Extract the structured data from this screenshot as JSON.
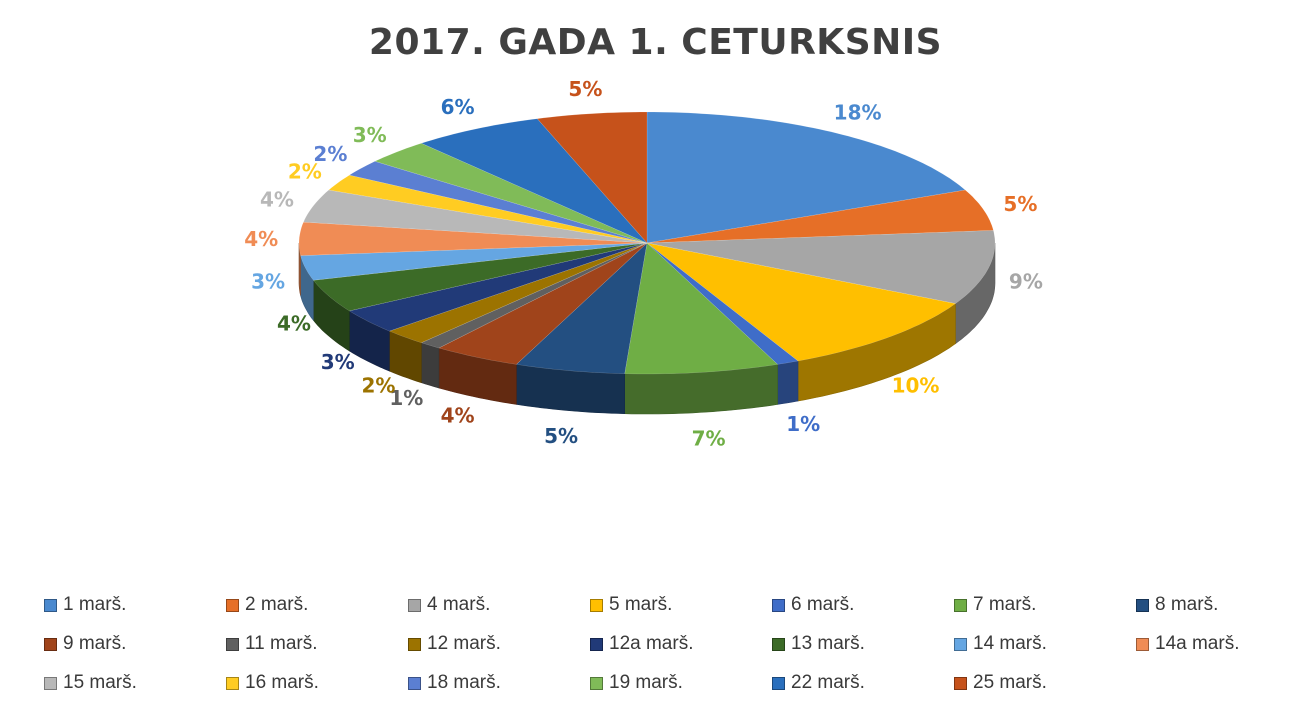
{
  "chart_data": {
    "type": "pie",
    "style": "3d",
    "title": "2017. GADA 1. CETURKSNIS",
    "legend_position": "bottom",
    "slices": [
      {
        "label": "1 marš.",
        "value": 18,
        "percent_label": "18%",
        "color": "#4a89cf"
      },
      {
        "label": "2 marš.",
        "value": 5,
        "percent_label": "5%",
        "color": "#e66f27"
      },
      {
        "label": "4 marš.",
        "value": 9,
        "percent_label": "9%",
        "color": "#a6a6a6"
      },
      {
        "label": "5 marš.",
        "value": 10,
        "percent_label": "10%",
        "color": "#ffbf00"
      },
      {
        "label": "6 marš.",
        "value": 1,
        "percent_label": "1%",
        "color": "#3f6dc8"
      },
      {
        "label": "7 marš.",
        "value": 7,
        "percent_label": "7%",
        "color": "#6fae45"
      },
      {
        "label": "8 marš.",
        "value": 5,
        "percent_label": "5%",
        "color": "#234f81"
      },
      {
        "label": "9 marš.",
        "value": 4,
        "percent_label": "4%",
        "color": "#a0441b"
      },
      {
        "label": "11 marš.",
        "value": 1,
        "percent_label": "1%",
        "color": "#606060"
      },
      {
        "label": "12 marš.",
        "value": 2,
        "percent_label": "2%",
        "color": "#9c7300"
      },
      {
        "label": "12a marš.",
        "value": 3,
        "percent_label": "3%",
        "color": "#213a78"
      },
      {
        "label": "13 marš.",
        "value": 4,
        "percent_label": "4%",
        "color": "#3c6b27"
      },
      {
        "label": "14 marš.",
        "value": 3,
        "percent_label": "3%",
        "color": "#65a6e2"
      },
      {
        "label": "14a marš.",
        "value": 4,
        "percent_label": "4%",
        "color": "#f08c55"
      },
      {
        "label": "15 marš.",
        "value": 4,
        "percent_label": "4%",
        "color": "#b8b8b8"
      },
      {
        "label": "16 marš.",
        "value": 2,
        "percent_label": "2%",
        "color": "#ffcc22"
      },
      {
        "label": "18 marš.",
        "value": 2,
        "percent_label": "2%",
        "color": "#5b7fd2"
      },
      {
        "label": "19 marš.",
        "value": 3,
        "percent_label": "3%",
        "color": "#80bb58"
      },
      {
        "label": "22 marš.",
        "value": 6,
        "percent_label": "6%",
        "color": "#2a6fbd"
      },
      {
        "label": "25 marš.",
        "value": 5,
        "percent_label": "5%",
        "color": "#c6521b"
      }
    ]
  }
}
